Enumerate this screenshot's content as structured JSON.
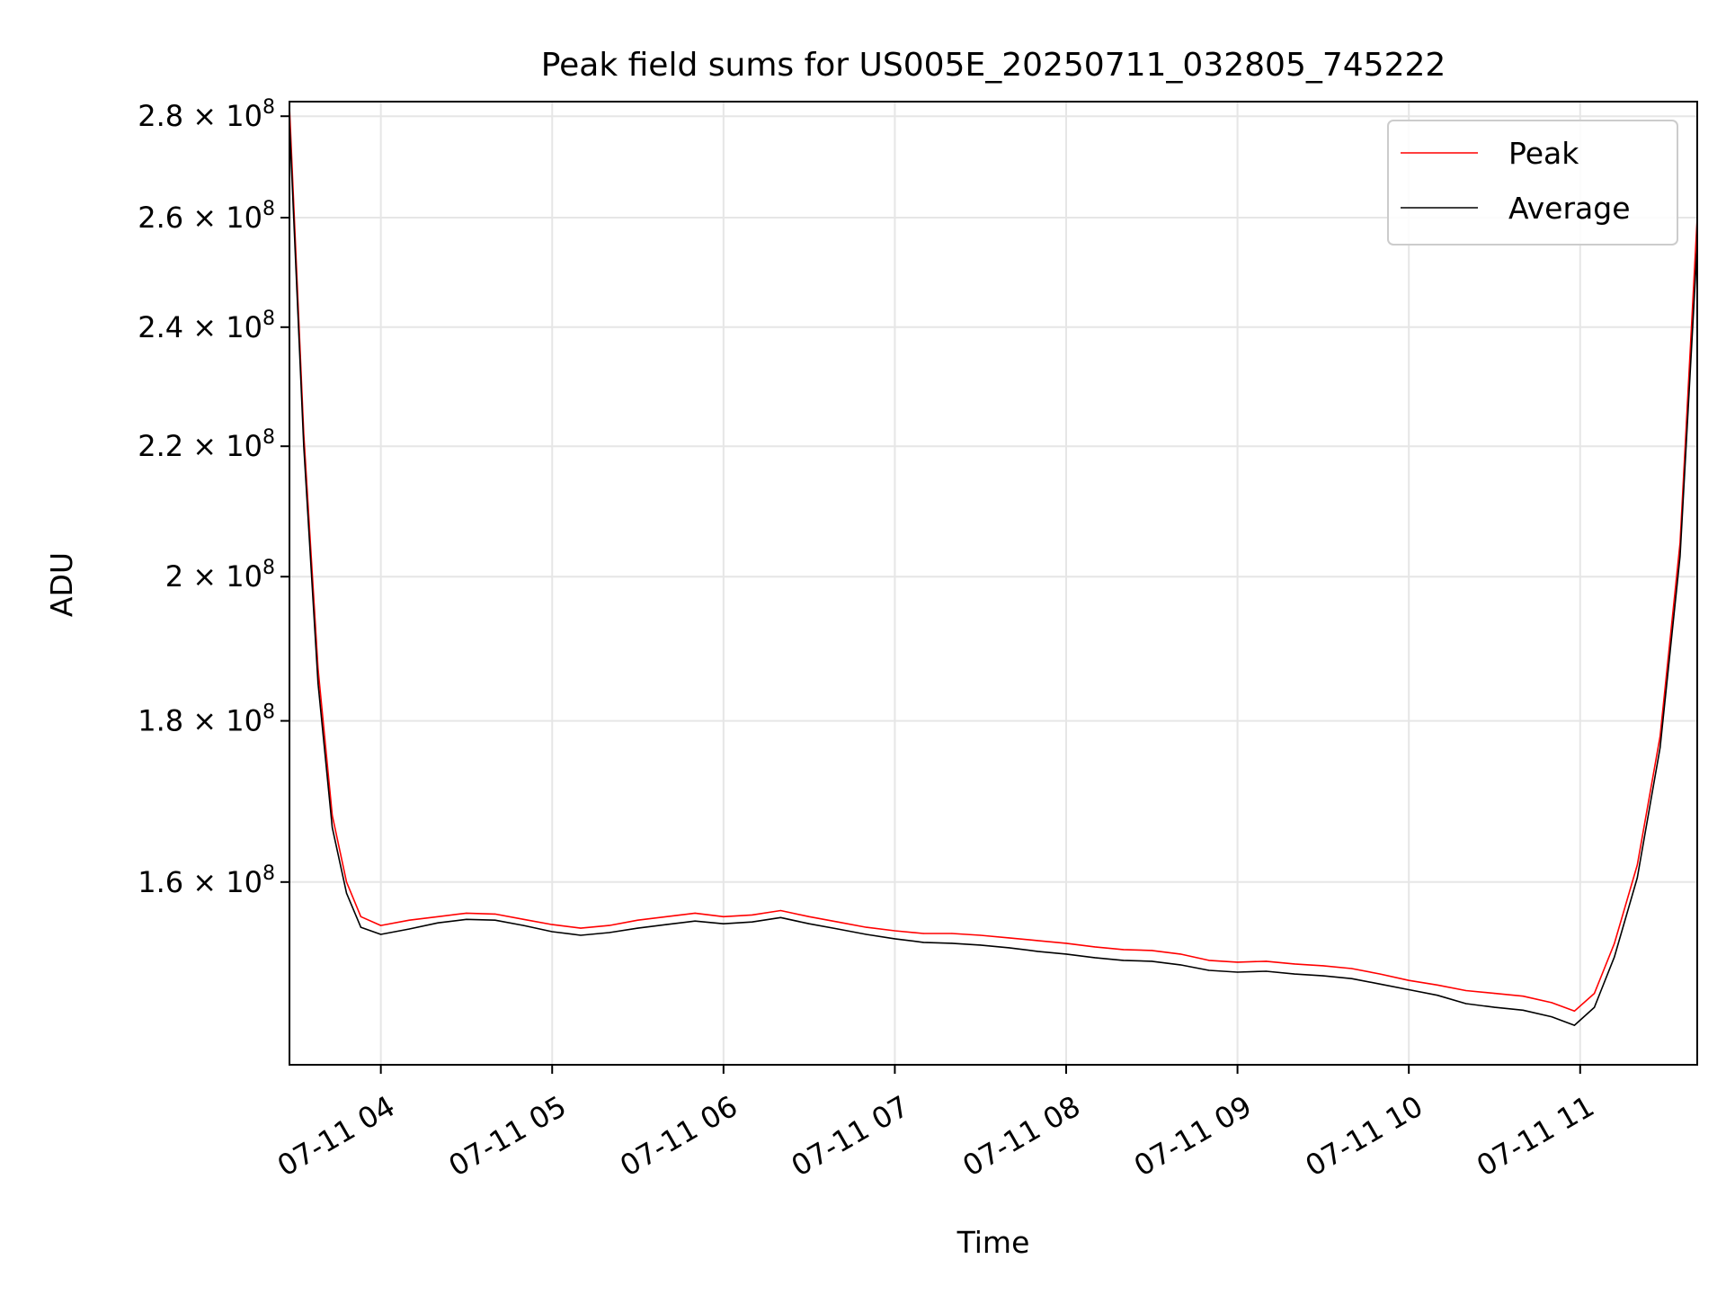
{
  "chart_data": {
    "type": "line",
    "title": "Peak field sums for US005E_20250711_032805_745222",
    "xlabel": "Time",
    "ylabel": "ADU",
    "yscale": "log",
    "xlim": [
      "2025-07-11 03:28",
      "2025-07-11 11:41"
    ],
    "ylim": [
      140000000,
      283000000
    ],
    "x_ticks": [
      {
        "value": "2025-07-11 04:00",
        "label": "07-11 04"
      },
      {
        "value": "2025-07-11 05:00",
        "label": "07-11 05"
      },
      {
        "value": "2025-07-11 06:00",
        "label": "07-11 06"
      },
      {
        "value": "2025-07-11 07:00",
        "label": "07-11 07"
      },
      {
        "value": "2025-07-11 08:00",
        "label": "07-11 08"
      },
      {
        "value": "2025-07-11 09:00",
        "label": "07-11 09"
      },
      {
        "value": "2025-07-11 10:00",
        "label": "07-11 10"
      },
      {
        "value": "2025-07-11 11:00",
        "label": "07-11 11"
      }
    ],
    "y_ticks": [
      {
        "value": 160000000,
        "mant": "1.6 × 10",
        "exp": "8"
      },
      {
        "value": 180000000,
        "mant": "1.8 × 10",
        "exp": "8"
      },
      {
        "value": 200000000,
        "mant": "2 × 10",
        "exp": "8"
      },
      {
        "value": 220000000,
        "mant": "2.2 × 10",
        "exp": "8"
      },
      {
        "value": 240000000,
        "mant": "2.4 × 10",
        "exp": "8"
      },
      {
        "value": 260000000,
        "mant": "2.6 × 10",
        "exp": "8"
      },
      {
        "value": 280000000,
        "mant": "2.8 × 10",
        "exp": "8"
      }
    ],
    "grid": true,
    "legend": {
      "position": "top-right"
    },
    "series": [
      {
        "name": "Peak",
        "color": "#ff0000",
        "points": [
          [
            "2025-07-11 03:28",
            282000000
          ],
          [
            "2025-07-11 03:33",
            222000000
          ],
          [
            "2025-07-11 03:38",
            187000000
          ],
          [
            "2025-07-11 03:43",
            168000000
          ],
          [
            "2025-07-11 03:48",
            160000000
          ],
          [
            "2025-07-11 03:53",
            156000000
          ],
          [
            "2025-07-11 04:00",
            155000000
          ],
          [
            "2025-07-11 04:10",
            155600000
          ],
          [
            "2025-07-11 04:20",
            156000000
          ],
          [
            "2025-07-11 04:30",
            156400000
          ],
          [
            "2025-07-11 04:40",
            156300000
          ],
          [
            "2025-07-11 04:50",
            155700000
          ],
          [
            "2025-07-11 05:00",
            155100000
          ],
          [
            "2025-07-11 05:10",
            154700000
          ],
          [
            "2025-07-11 05:20",
            155000000
          ],
          [
            "2025-07-11 05:30",
            155600000
          ],
          [
            "2025-07-11 05:40",
            156000000
          ],
          [
            "2025-07-11 05:50",
            156400000
          ],
          [
            "2025-07-11 06:00",
            156000000
          ],
          [
            "2025-07-11 06:10",
            156200000
          ],
          [
            "2025-07-11 06:20",
            156700000
          ],
          [
            "2025-07-11 06:30",
            156000000
          ],
          [
            "2025-07-11 06:40",
            155400000
          ],
          [
            "2025-07-11 06:50",
            154800000
          ],
          [
            "2025-07-11 07:00",
            154400000
          ],
          [
            "2025-07-11 07:10",
            154100000
          ],
          [
            "2025-07-11 07:20",
            154100000
          ],
          [
            "2025-07-11 07:30",
            153900000
          ],
          [
            "2025-07-11 07:40",
            153600000
          ],
          [
            "2025-07-11 07:50",
            153300000
          ],
          [
            "2025-07-11 08:00",
            153000000
          ],
          [
            "2025-07-11 08:10",
            152600000
          ],
          [
            "2025-07-11 08:20",
            152300000
          ],
          [
            "2025-07-11 08:30",
            152200000
          ],
          [
            "2025-07-11 08:40",
            151800000
          ],
          [
            "2025-07-11 08:50",
            151100000
          ],
          [
            "2025-07-11 09:00",
            150900000
          ],
          [
            "2025-07-11 09:10",
            151000000
          ],
          [
            "2025-07-11 09:20",
            150700000
          ],
          [
            "2025-07-11 09:30",
            150500000
          ],
          [
            "2025-07-11 09:40",
            150200000
          ],
          [
            "2025-07-11 09:50",
            149600000
          ],
          [
            "2025-07-11 10:00",
            148900000
          ],
          [
            "2025-07-11 10:10",
            148400000
          ],
          [
            "2025-07-11 10:20",
            147800000
          ],
          [
            "2025-07-11 10:30",
            147500000
          ],
          [
            "2025-07-11 10:40",
            147200000
          ],
          [
            "2025-07-11 10:50",
            146500000
          ],
          [
            "2025-07-11 10:58",
            145600000
          ],
          [
            "2025-07-11 11:05",
            147500000
          ],
          [
            "2025-07-11 11:12",
            153000000
          ],
          [
            "2025-07-11 11:20",
            162000000
          ],
          [
            "2025-07-11 11:28",
            178000000
          ],
          [
            "2025-07-11 11:35",
            205000000
          ],
          [
            "2025-07-11 11:41",
            260000000
          ]
        ]
      },
      {
        "name": "Average",
        "color": "#000000",
        "points": [
          [
            "2025-07-11 03:28",
            279000000
          ],
          [
            "2025-07-11 03:33",
            220000000
          ],
          [
            "2025-07-11 03:38",
            185000000
          ],
          [
            "2025-07-11 03:43",
            166500000
          ],
          [
            "2025-07-11 03:48",
            158700000
          ],
          [
            "2025-07-11 03:53",
            154800000
          ],
          [
            "2025-07-11 04:00",
            154000000
          ],
          [
            "2025-07-11 04:10",
            154600000
          ],
          [
            "2025-07-11 04:20",
            155300000
          ],
          [
            "2025-07-11 04:30",
            155700000
          ],
          [
            "2025-07-11 04:40",
            155600000
          ],
          [
            "2025-07-11 04:50",
            155000000
          ],
          [
            "2025-07-11 05:00",
            154300000
          ],
          [
            "2025-07-11 05:10",
            153900000
          ],
          [
            "2025-07-11 05:20",
            154200000
          ],
          [
            "2025-07-11 05:30",
            154700000
          ],
          [
            "2025-07-11 05:40",
            155100000
          ],
          [
            "2025-07-11 05:50",
            155500000
          ],
          [
            "2025-07-11 06:00",
            155200000
          ],
          [
            "2025-07-11 06:10",
            155400000
          ],
          [
            "2025-07-11 06:20",
            155900000
          ],
          [
            "2025-07-11 06:30",
            155200000
          ],
          [
            "2025-07-11 06:40",
            154600000
          ],
          [
            "2025-07-11 06:50",
            154000000
          ],
          [
            "2025-07-11 07:00",
            153500000
          ],
          [
            "2025-07-11 07:10",
            153100000
          ],
          [
            "2025-07-11 07:20",
            153000000
          ],
          [
            "2025-07-11 07:30",
            152800000
          ],
          [
            "2025-07-11 07:40",
            152500000
          ],
          [
            "2025-07-11 07:50",
            152100000
          ],
          [
            "2025-07-11 08:00",
            151800000
          ],
          [
            "2025-07-11 08:10",
            151400000
          ],
          [
            "2025-07-11 08:20",
            151100000
          ],
          [
            "2025-07-11 08:30",
            151000000
          ],
          [
            "2025-07-11 08:40",
            150600000
          ],
          [
            "2025-07-11 08:50",
            150000000
          ],
          [
            "2025-07-11 09:00",
            149800000
          ],
          [
            "2025-07-11 09:10",
            149900000
          ],
          [
            "2025-07-11 09:20",
            149600000
          ],
          [
            "2025-07-11 09:30",
            149400000
          ],
          [
            "2025-07-11 09:40",
            149100000
          ],
          [
            "2025-07-11 09:50",
            148500000
          ],
          [
            "2025-07-11 10:00",
            147900000
          ],
          [
            "2025-07-11 10:10",
            147300000
          ],
          [
            "2025-07-11 10:20",
            146400000
          ],
          [
            "2025-07-11 10:30",
            146000000
          ],
          [
            "2025-07-11 10:40",
            145700000
          ],
          [
            "2025-07-11 10:50",
            145000000
          ],
          [
            "2025-07-11 10:58",
            144100000
          ],
          [
            "2025-07-11 11:05",
            146000000
          ],
          [
            "2025-07-11 11:12",
            151500000
          ],
          [
            "2025-07-11 11:20",
            160500000
          ],
          [
            "2025-07-11 11:28",
            176500000
          ],
          [
            "2025-07-11 11:35",
            203000000
          ],
          [
            "2025-07-11 11:41",
            255000000
          ]
        ]
      }
    ]
  }
}
